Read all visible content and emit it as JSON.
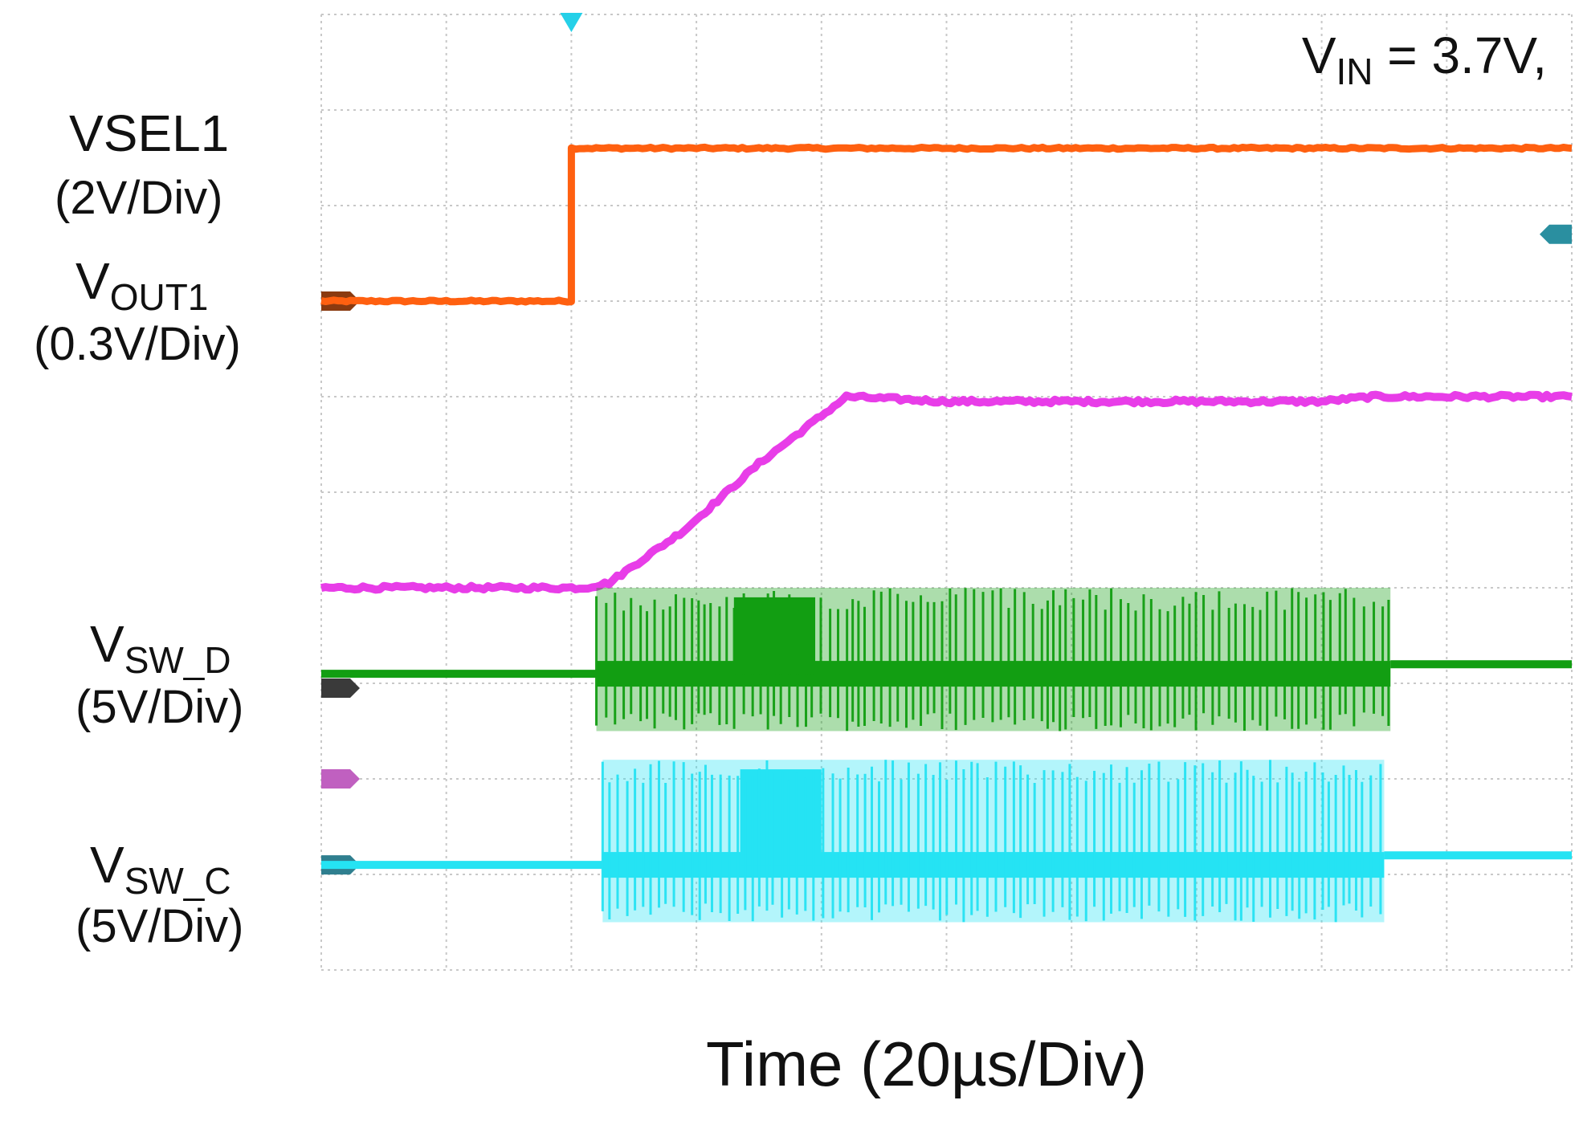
{
  "chart_data": {
    "type": "line",
    "title": "",
    "annotation": {
      "prefix": "V",
      "sub": "IN",
      "suffix": " = 3.7V,"
    },
    "xlabel": "Time (20µs/Div)",
    "x_unit": "div",
    "xlim": [
      0,
      10
    ],
    "ylim": [
      0,
      10
    ],
    "grid": true,
    "grid_divisions": {
      "x": 10,
      "y": 10
    },
    "trigger_position_div": 2,
    "series": [
      {
        "id": "vsel1",
        "name": "VSEL1",
        "name_sub": "",
        "scale": "(2V/Div)",
        "color": "#ff6010",
        "points": [
          [
            0,
            7.0
          ],
          [
            2.0,
            7.0
          ],
          [
            2.0,
            8.6
          ],
          [
            10,
            8.6
          ]
        ]
      },
      {
        "id": "vout1",
        "name": "V",
        "name_sub": "OUT1",
        "scale": "(0.3V/Div)",
        "color": "#e83de8",
        "points": [
          [
            0,
            4.0
          ],
          [
            2.1,
            4.0
          ],
          [
            2.3,
            4.05
          ],
          [
            2.9,
            4.6
          ],
          [
            3.5,
            5.3
          ],
          [
            4.2,
            6.0
          ],
          [
            5.0,
            5.95
          ],
          [
            8.0,
            5.95
          ],
          [
            8.4,
            6.0
          ],
          [
            10,
            6.0
          ]
        ]
      },
      {
        "id": "vsw_d",
        "name": "V",
        "name_sub": "SW_D",
        "scale": "(5V/Div)",
        "color": "#129e12",
        "switching": {
          "start_div": 2.2,
          "end_div": 8.55,
          "baseline_div": 3.1,
          "high_div": 4.0,
          "low_div": 2.5,
          "final_div": 3.2
        }
      },
      {
        "id": "vsw_c",
        "name": "V",
        "name_sub": "SW_C",
        "scale": "(5V/Div)",
        "color": "#25e3f3",
        "switching": {
          "start_div": 2.25,
          "end_div": 8.5,
          "baseline_div": 1.1,
          "high_div": 2.2,
          "low_div": 0.5,
          "final_div": 1.2
        }
      }
    ]
  }
}
